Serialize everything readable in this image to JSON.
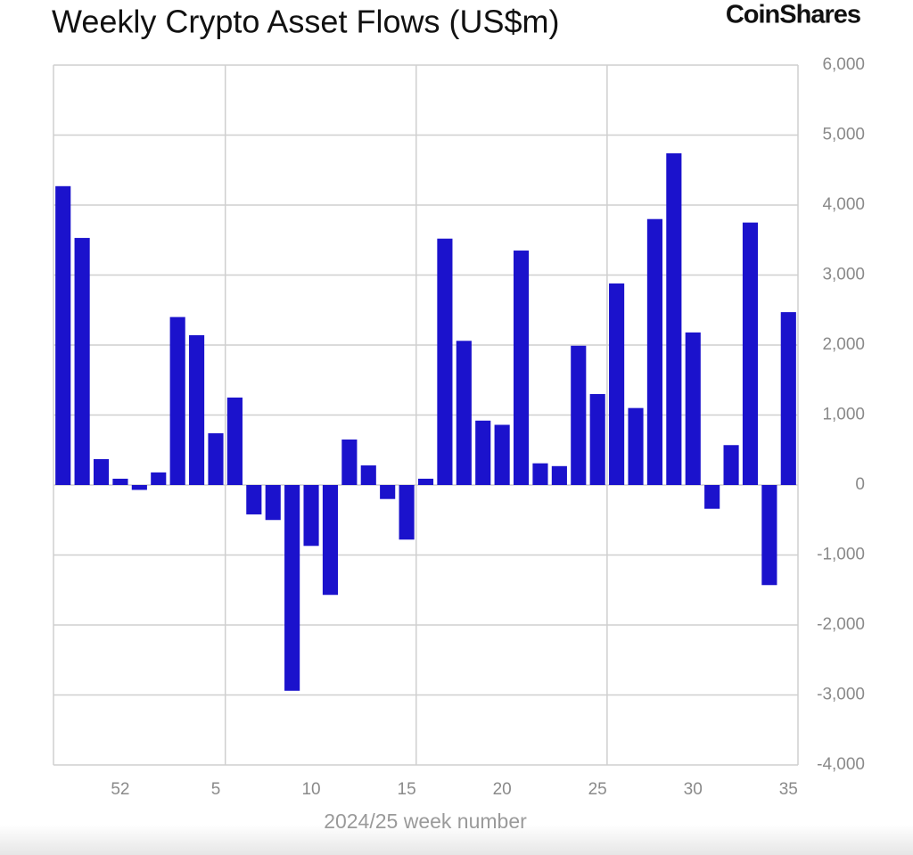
{
  "chart_data": {
    "type": "bar",
    "title": "Weekly Crypto Asset Flows (US$m)",
    "logo": "CoinShares",
    "x_label": "2024/25 week number",
    "categories": [
      null,
      null,
      null,
      "52",
      null,
      null,
      null,
      null,
      "5",
      null,
      null,
      null,
      null,
      "10",
      null,
      null,
      null,
      null,
      "15",
      null,
      null,
      null,
      null,
      "20",
      null,
      null,
      null,
      null,
      "25",
      null,
      null,
      null,
      null,
      "30",
      null,
      null,
      null,
      null,
      "35"
    ],
    "values": [
      4270,
      3530,
      370,
      90,
      -70,
      180,
      2400,
      2140,
      740,
      1250,
      -420,
      -500,
      -2940,
      -870,
      -1570,
      650,
      280,
      -200,
      -780,
      90,
      3520,
      2060,
      920,
      860,
      3350,
      310,
      270,
      1990,
      1300,
      2880,
      1100,
      3800,
      4740,
      2180,
      -340,
      570,
      3750,
      -1430,
      2470
    ],
    "color": "#1b12cc",
    "ylim": [
      -4000,
      6000
    ],
    "yticks": [
      {
        "value": -4000,
        "label": "-4,000"
      },
      {
        "value": -3000,
        "label": "-3,000"
      },
      {
        "value": -2000,
        "label": "-2,000"
      },
      {
        "value": -1000,
        "label": "-1,000"
      },
      0,
      {
        "value": 1000,
        "label": "1,000"
      },
      {
        "value": 2000,
        "label": "2,000"
      },
      {
        "value": 3000,
        "label": "3,000"
      },
      {
        "value": 4000,
        "label": "4,000"
      },
      {
        "value": 5000,
        "label": "5,000"
      },
      {
        "value": 6000,
        "label": "6,000"
      }
    ],
    "grid": true,
    "y_axis_side": "right"
  }
}
